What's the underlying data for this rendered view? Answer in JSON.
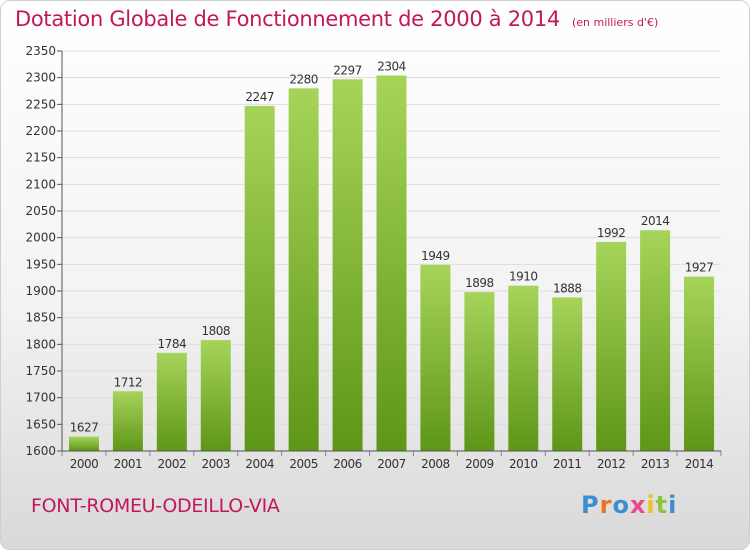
{
  "title": "Dotation Globale de Fonctionnement de 2000 à 2014",
  "subtitle": "(en milliers d'€)",
  "commune": "FONT-ROMEU-ODEILLO-VIA",
  "logo": {
    "text": "Proxiti",
    "colors": [
      "#3b8fd0",
      "#e8742a",
      "#3b8fd0",
      "#e84a8a",
      "#f0c020",
      "#8cc63f",
      "#3b8fd0"
    ]
  },
  "colors": {
    "bar_top": "#a6d45a",
    "bar_bottom": "#5e9618",
    "title": "#c2185b",
    "grid": "#dddddd"
  },
  "chart_data": {
    "type": "bar",
    "categories": [
      "2000",
      "2001",
      "2002",
      "2003",
      "2004",
      "2005",
      "2006",
      "2007",
      "2008",
      "2009",
      "2010",
      "2011",
      "2012",
      "2013",
      "2014"
    ],
    "values": [
      1627,
      1712,
      1784,
      1808,
      2247,
      2280,
      2297,
      2304,
      1949,
      1898,
      1910,
      1888,
      1992,
      2014,
      1927
    ],
    "title": "Dotation Globale de Fonctionnement de 2000 à 2014",
    "subtitle": "(en milliers d'€)",
    "xlabel": "",
    "ylabel": "",
    "ylim": [
      1600,
      2350
    ],
    "yticks": [
      1600,
      1650,
      1700,
      1750,
      1800,
      1850,
      1900,
      1950,
      2000,
      2050,
      2100,
      2150,
      2200,
      2250,
      2300,
      2350
    ],
    "grid": true,
    "legend": "none"
  }
}
